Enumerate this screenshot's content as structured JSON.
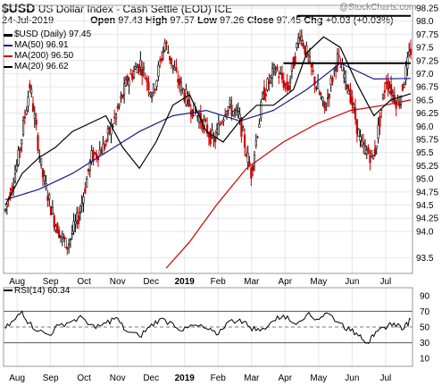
{
  "header": {
    "symbol": "$USD",
    "name": "US Dollar Index - Cash Settle (EOD)",
    "exchange": "ICE",
    "source": "@StockCharts.com",
    "date": "24-Jul-2019",
    "open_label": "Open",
    "open": "97.43",
    "high_label": "High",
    "high": "97.57",
    "low_label": "Low",
    "low": "97.26",
    "close_label": "Close",
    "close": "97.45",
    "chg_label": "Chg",
    "chg": "+0.03 (+0.03%)"
  },
  "legend": {
    "main": "$USD (Daily) 97.45",
    "ma50": "MA(50) 96.91",
    "ma200": "MA(200) 96.50",
    "ma20": "MA(20) 96.62"
  },
  "rsi_legend": "RSI(14) 60.34",
  "colors": {
    "up": "#000000",
    "down": "#cc0000",
    "ma50": "#1a1a8c",
    "ma200": "#cc0000",
    "ma20": "#000000",
    "grid": "#e6e6e6",
    "rsi": "#000000"
  },
  "chart_data": [
    {
      "type": "candlestick",
      "title": "$USD (Daily) 97.45",
      "ylim": [
        93.2,
        98.3
      ],
      "y_ticks": [
        "93.5",
        "94.0",
        "94.25",
        "94.5",
        "94.75",
        "95.0",
        "95.25",
        "95.5",
        "95.75",
        "96.0",
        "96.25",
        "96.5",
        "96.75",
        "97.0",
        "97.25",
        "97.5",
        "97.75",
        "98.0",
        "98.25"
      ],
      "x_tick_labels": [
        "Aug",
        "Sep",
        "Oct",
        "Nov",
        "Dec",
        "2019",
        "Feb",
        "Mar",
        "Apr",
        "May",
        "Jun",
        "Jul"
      ],
      "x_tick_months_index": [
        0,
        1,
        2,
        3,
        4,
        5,
        6,
        7,
        8,
        9,
        10,
        11
      ],
      "months_span": 12.1,
      "series": [
        {
          "name": "$USD (Daily) 97.45",
          "type": "ohlc",
          "monthly_path": [
            94.4,
            95.3,
            96.8,
            95.1,
            94.2,
            93.7,
            94.3,
            95.4,
            95.6,
            96.2,
            96.9,
            97.2,
            96.6,
            97.6,
            96.9,
            96.4,
            96.1,
            95.7,
            96.4,
            96.2,
            95.1,
            96.6,
            97.1,
            96.7,
            97.8,
            97.0,
            96.3,
            97.3,
            96.7,
            95.6,
            95.4,
            96.9,
            96.4,
            97.45
          ]
        },
        {
          "name": "MA(50) 96.91",
          "type": "line",
          "points": [
            [
              0,
              94.6
            ],
            [
              1,
              94.8
            ],
            [
              2,
              95.1
            ],
            [
              3,
              95.5
            ],
            [
              4,
              95.9
            ],
            [
              5,
              96.2
            ],
            [
              6,
              96.3
            ],
            [
              7,
              96.1
            ],
            [
              8,
              96.3
            ],
            [
              9,
              96.7
            ],
            [
              10,
              97.2
            ],
            [
              11,
              96.9
            ],
            [
              12.1,
              96.91
            ]
          ]
        },
        {
          "name": "MA(200) 96.50",
          "type": "line",
          "points": [
            [
              4.8,
              93.3
            ],
            [
              5.5,
              93.8
            ],
            [
              6.3,
              94.5
            ],
            [
              7.2,
              95.2
            ],
            [
              8.3,
              95.7
            ],
            [
              9.3,
              96.05
            ],
            [
              10.3,
              96.3
            ],
            [
              11.3,
              96.4
            ],
            [
              12.1,
              96.5
            ]
          ]
        },
        {
          "name": "MA(20) 96.62",
          "type": "line",
          "points": [
            [
              0,
              94.5
            ],
            [
              0.5,
              95.1
            ],
            [
              1,
              95.4
            ],
            [
              1.5,
              95.6
            ],
            [
              2,
              95.9
            ],
            [
              3,
              96.2
            ],
            [
              3.5,
              95.6
            ],
            [
              4,
              95.2
            ],
            [
              4.5,
              95.7
            ],
            [
              5,
              96.4
            ],
            [
              5.5,
              96.6
            ],
            [
              6,
              95.9
            ],
            [
              6.5,
              95.7
            ],
            [
              7,
              96.1
            ],
            [
              7.5,
              96.4
            ],
            [
              8,
              96.4
            ],
            [
              8.6,
              96.7
            ],
            [
              9,
              97.4
            ],
            [
              9.5,
              97.7
            ],
            [
              10,
              97.5
            ],
            [
              10.5,
              96.8
            ],
            [
              11,
              96.2
            ],
            [
              11.5,
              96.5
            ],
            [
              12.1,
              96.62
            ]
          ]
        }
      ],
      "horizontal_lines": [
        {
          "y": 98.1,
          "x_start_month": 8.7,
          "x_end_month": 12.1
        },
        {
          "y": 97.2,
          "x_start_month": 8.3,
          "x_end_month": 12.1
        }
      ]
    },
    {
      "type": "line",
      "title": "RSI(14) 60.34",
      "ylim": [
        0,
        100
      ],
      "y_ticks": [
        "10",
        "30",
        "50",
        "70",
        "90"
      ],
      "reference_lines": [
        30,
        50,
        70
      ],
      "x_tick_labels": [
        "Aug",
        "Sep",
        "Oct",
        "Nov",
        "Dec",
        "2019",
        "Feb",
        "Mar",
        "Apr",
        "May",
        "Jun",
        "Jul"
      ],
      "series": [
        {
          "name": "RSI(14) 60.34",
          "points": [
            [
              0,
              48
            ],
            [
              0.3,
              60
            ],
            [
              0.5,
              70
            ],
            [
              0.7,
              55
            ],
            [
              1,
              45
            ],
            [
              1.3,
              40
            ],
            [
              1.6,
              52
            ],
            [
              2,
              58
            ],
            [
              2.3,
              62
            ],
            [
              2.7,
              48
            ],
            [
              3,
              55
            ],
            [
              3.3,
              62
            ],
            [
              3.6,
              45
            ],
            [
              4,
              38
            ],
            [
              4.3,
              50
            ],
            [
              4.6,
              60
            ],
            [
              5,
              55
            ],
            [
              5.3,
              45
            ],
            [
              5.6,
              52
            ],
            [
              6,
              48
            ],
            [
              6.3,
              40
            ],
            [
              6.6,
              55
            ],
            [
              7,
              60
            ],
            [
              7.3,
              50
            ],
            [
              7.6,
              45
            ],
            [
              8,
              58
            ],
            [
              8.3,
              65
            ],
            [
              8.6,
              55
            ],
            [
              9,
              66
            ],
            [
              9.3,
              60
            ],
            [
              9.6,
              68
            ],
            [
              10,
              55
            ],
            [
              10.3,
              45
            ],
            [
              10.6,
              40
            ],
            [
              10.8,
              30
            ],
            [
              11,
              38
            ],
            [
              11.3,
              50
            ],
            [
              11.6,
              55
            ],
            [
              11.9,
              48
            ],
            [
              12.1,
              60.34
            ]
          ]
        }
      ]
    }
  ]
}
